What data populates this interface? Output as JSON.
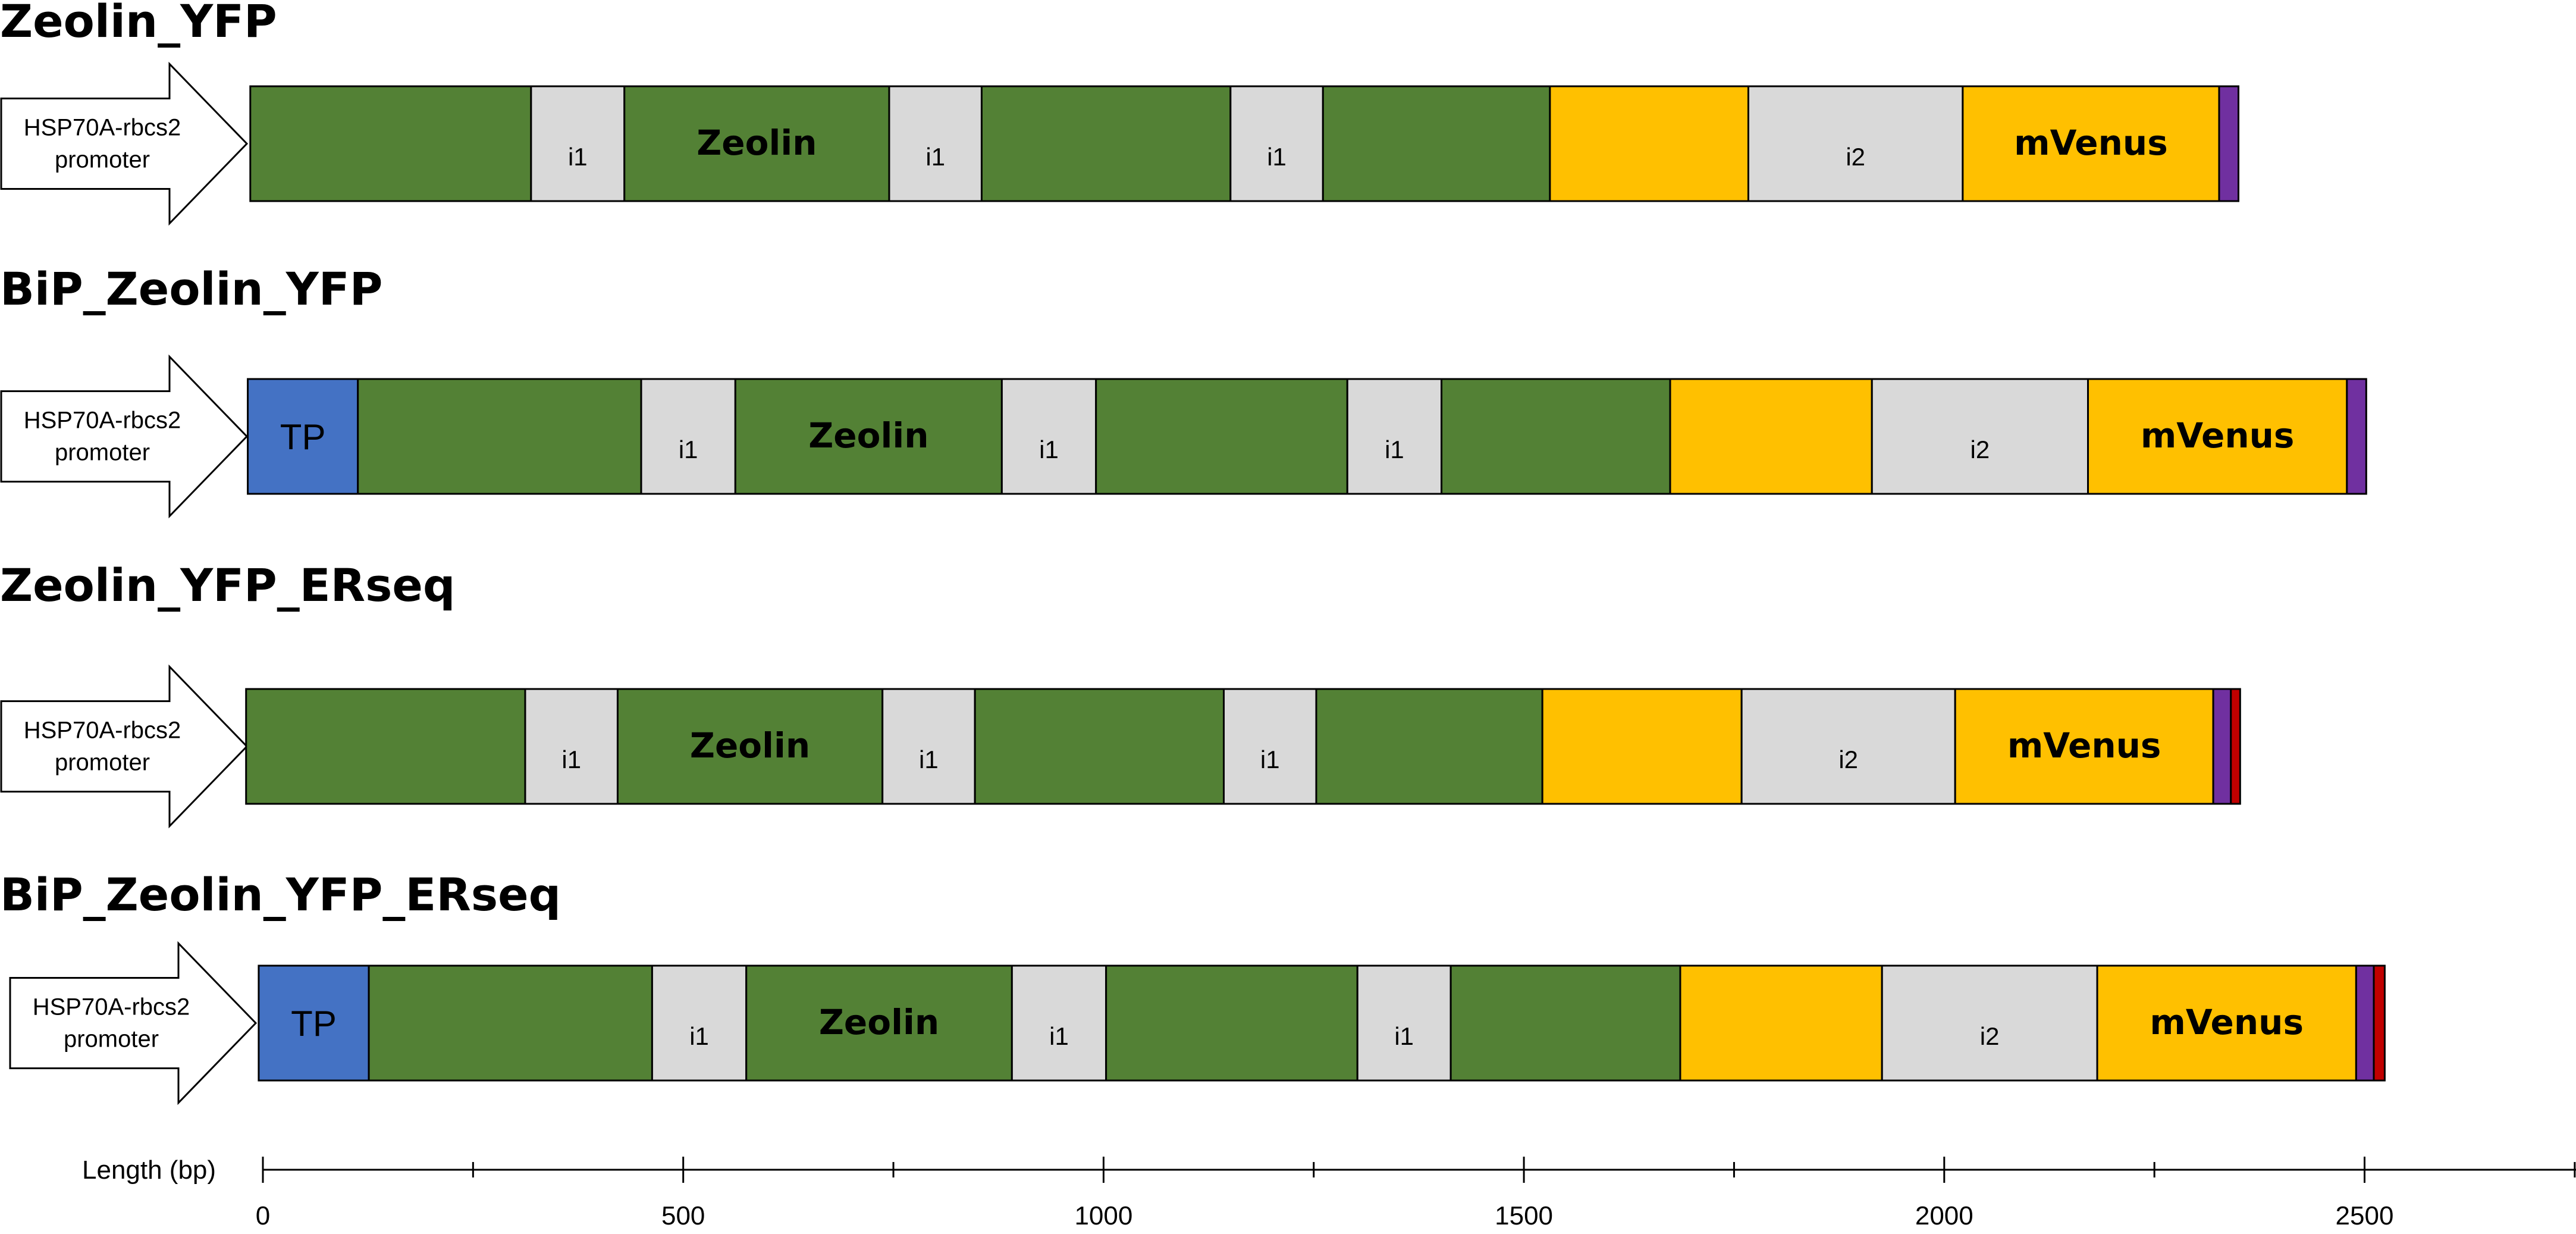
{
  "axis": {
    "label": "Length (bp)",
    "min": 0,
    "max": 2500,
    "major_ticks": [
      0,
      500,
      1000,
      1500,
      2000,
      2500
    ],
    "tick_labels": [
      "0",
      "500",
      "1000",
      "1500",
      "2000",
      "2500"
    ]
  },
  "colors": {
    "exon": "#538135",
    "intron": "#d9d9d9",
    "yfp": "#ffc000",
    "tp": "#4472c4",
    "tag_purple": "#7030a0",
    "tag_red": "#c00000"
  },
  "constructs": [
    {
      "title": "Zeolin_YFP",
      "promoter": {
        "line1": "HSP70A-rbcs2",
        "line2": "promoter"
      },
      "segments": [
        {
          "type": "exon",
          "start": -15,
          "end": 319,
          "label": ""
        },
        {
          "type": "intron",
          "start": 319,
          "end": 430,
          "label": "i1"
        },
        {
          "type": "exon",
          "start": 430,
          "end": 745,
          "label": "Zeolin"
        },
        {
          "type": "intron",
          "start": 745,
          "end": 855,
          "label": "i1"
        },
        {
          "type": "exon",
          "start": 855,
          "end": 1151,
          "label": ""
        },
        {
          "type": "intron",
          "start": 1151,
          "end": 1261,
          "label": "i1"
        },
        {
          "type": "exon",
          "start": 1261,
          "end": 1531,
          "label": ""
        },
        {
          "type": "yfp",
          "start": 1531,
          "end": 1767,
          "label": ""
        },
        {
          "type": "intron",
          "start": 1767,
          "end": 2022,
          "label": "i2"
        },
        {
          "type": "yfp",
          "start": 2022,
          "end": 2327,
          "label": "mVenus"
        },
        {
          "type": "tag_purple",
          "start": 2327,
          "end": 2350,
          "label": ""
        }
      ]
    },
    {
      "title": "BiP_Zeolin_YFP",
      "promoter": {
        "line1": "HSP70A-rbcs2",
        "line2": "promoter"
      },
      "segments": [
        {
          "type": "tp",
          "start": -18,
          "end": 113,
          "label": "TP"
        },
        {
          "type": "exon",
          "start": 113,
          "end": 450,
          "label": ""
        },
        {
          "type": "intron",
          "start": 450,
          "end": 562,
          "label": "i1"
        },
        {
          "type": "exon",
          "start": 562,
          "end": 879,
          "label": "Zeolin"
        },
        {
          "type": "intron",
          "start": 879,
          "end": 991,
          "label": "i1"
        },
        {
          "type": "exon",
          "start": 991,
          "end": 1290,
          "label": ""
        },
        {
          "type": "intron",
          "start": 1290,
          "end": 1402,
          "label": "i1"
        },
        {
          "type": "exon",
          "start": 1402,
          "end": 1674,
          "label": ""
        },
        {
          "type": "yfp",
          "start": 1674,
          "end": 1914,
          "label": ""
        },
        {
          "type": "intron",
          "start": 1914,
          "end": 2171,
          "label": "i2"
        },
        {
          "type": "yfp",
          "start": 2171,
          "end": 2479,
          "label": "mVenus"
        },
        {
          "type": "tag_purple",
          "start": 2479,
          "end": 2502,
          "label": ""
        }
      ]
    },
    {
      "title": "Zeolin_YFP_ERseq",
      "promoter": {
        "line1": "HSP70A-rbcs2",
        "line2": "promoter"
      },
      "segments": [
        {
          "type": "exon",
          "start": -20,
          "end": 312,
          "label": ""
        },
        {
          "type": "intron",
          "start": 312,
          "end": 422,
          "label": "i1"
        },
        {
          "type": "exon",
          "start": 422,
          "end": 737,
          "label": "Zeolin"
        },
        {
          "type": "intron",
          "start": 737,
          "end": 847,
          "label": "i1"
        },
        {
          "type": "exon",
          "start": 847,
          "end": 1143,
          "label": ""
        },
        {
          "type": "intron",
          "start": 1143,
          "end": 1253,
          "label": "i1"
        },
        {
          "type": "exon",
          "start": 1253,
          "end": 1522,
          "label": ""
        },
        {
          "type": "yfp",
          "start": 1522,
          "end": 1759,
          "label": ""
        },
        {
          "type": "intron",
          "start": 1759,
          "end": 2013,
          "label": "i2"
        },
        {
          "type": "yfp",
          "start": 2013,
          "end": 2320,
          "label": "mVenus"
        },
        {
          "type": "tag_purple",
          "start": 2320,
          "end": 2341,
          "label": ""
        },
        {
          "type": "tag_red",
          "start": 2341,
          "end": 2352,
          "label": ""
        }
      ]
    },
    {
      "title": "BiP_Zeolin_YFP_ERseq",
      "promoter": {
        "line1": "HSP70A-rbcs2",
        "line2": "promoter"
      },
      "segments": [
        {
          "type": "tp",
          "start": -5,
          "end": 126,
          "label": "TP"
        },
        {
          "type": "exon",
          "start": 126,
          "end": 463,
          "label": ""
        },
        {
          "type": "intron",
          "start": 463,
          "end": 575,
          "label": "i1"
        },
        {
          "type": "exon",
          "start": 575,
          "end": 891,
          "label": "Zeolin"
        },
        {
          "type": "intron",
          "start": 891,
          "end": 1003,
          "label": "i1"
        },
        {
          "type": "exon",
          "start": 1003,
          "end": 1302,
          "label": ""
        },
        {
          "type": "intron",
          "start": 1302,
          "end": 1413,
          "label": "i1"
        },
        {
          "type": "exon",
          "start": 1413,
          "end": 1686,
          "label": ""
        },
        {
          "type": "yfp",
          "start": 1686,
          "end": 1926,
          "label": ""
        },
        {
          "type": "intron",
          "start": 1926,
          "end": 2182,
          "label": "i2"
        },
        {
          "type": "yfp",
          "start": 2182,
          "end": 2490,
          "label": "mVenus"
        },
        {
          "type": "tag_purple",
          "start": 2490,
          "end": 2511,
          "label": ""
        },
        {
          "type": "tag_red",
          "start": 2511,
          "end": 2524,
          "label": ""
        }
      ]
    }
  ]
}
